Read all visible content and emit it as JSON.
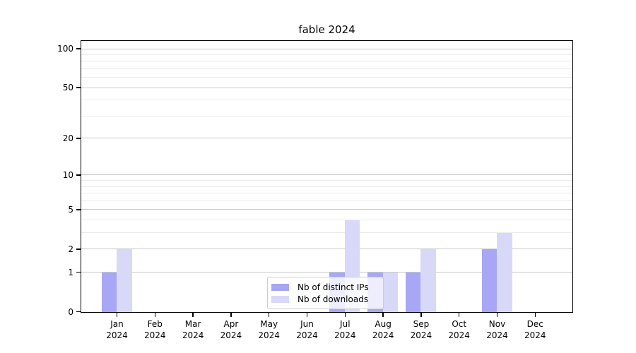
{
  "title": "fable 2024",
  "chart_data": {
    "type": "bar",
    "title": "fable 2024",
    "categories": [
      "Jan 2024",
      "Feb 2024",
      "Mar 2024",
      "Apr 2024",
      "May 2024",
      "Jun 2024",
      "Jul 2024",
      "Aug 2024",
      "Sep 2024",
      "Oct 2024",
      "Nov 2024",
      "Dec 2024"
    ],
    "series": [
      {
        "name": "Nb of distinct IPs",
        "color": "#a7a7f5",
        "values": [
          1,
          0,
          0,
          0,
          0,
          0,
          1,
          1,
          1,
          0,
          2,
          0
        ]
      },
      {
        "name": "Nb of downloads",
        "color": "#d8d8f8",
        "values": [
          2,
          0,
          0,
          0,
          0,
          0,
          4,
          1,
          2,
          0,
          3,
          0
        ]
      }
    ],
    "xlabel": "",
    "ylabel": "",
    "yscale": "log1p",
    "ylim": [
      0,
      115
    ],
    "y_ticks_major": [
      0,
      1,
      2,
      5,
      10,
      20,
      50,
      100
    ],
    "y_ticks_minor": [
      3,
      4,
      6,
      7,
      8,
      9,
      30,
      40,
      60,
      70,
      80,
      90
    ],
    "grid": true,
    "legend_position": "lower center",
    "colors": {
      "major_grid": "#c9c9c9",
      "minor_grid": "#ebebeb",
      "spine": "#000000",
      "text": "#000000"
    }
  }
}
